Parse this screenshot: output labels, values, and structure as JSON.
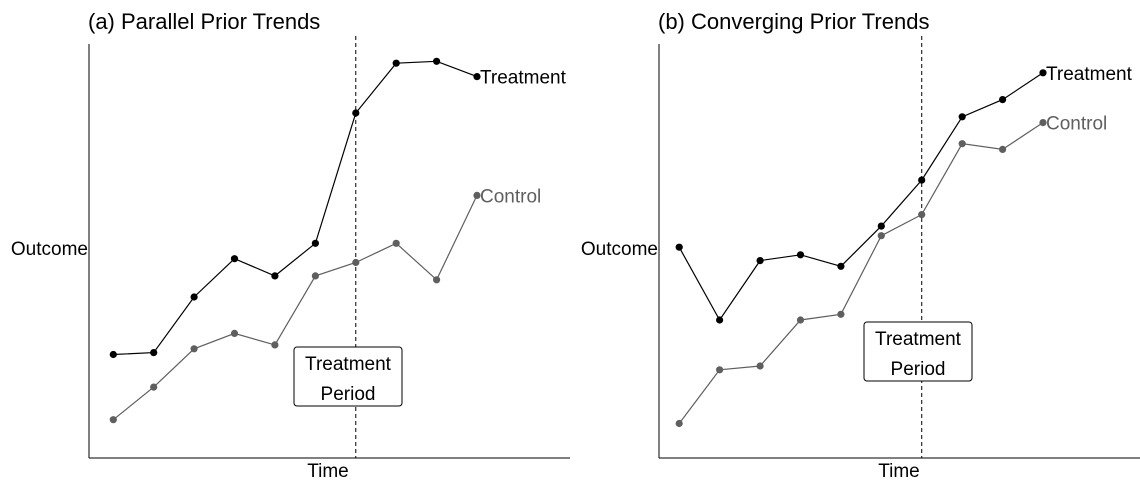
{
  "colors": {
    "treatment": "#000000",
    "control": "#5f5f5f"
  },
  "chart_data": [
    {
      "type": "line",
      "title": "(a) Parallel Prior Trends",
      "xlabel": "Time",
      "ylabel": "Outcome",
      "x": [
        1,
        2,
        3,
        4,
        5,
        6,
        7,
        8,
        9,
        10
      ],
      "xlim": [
        0.4,
        12.3
      ],
      "ylim": [
        -0.5,
        10.3
      ],
      "treatment_time": 7,
      "annotation": [
        "Treatment",
        "Period"
      ],
      "series": [
        {
          "name": "Treatment",
          "values": [
            2.2,
            2.25,
            3.7,
            4.7,
            4.25,
            5.1,
            8.5,
            9.8,
            9.85,
            9.45
          ]
        },
        {
          "name": "Control",
          "values": [
            0.5,
            1.35,
            2.35,
            2.75,
            2.45,
            4.25,
            4.6,
            5.1,
            4.15,
            6.35
          ]
        }
      ]
    },
    {
      "type": "line",
      "title": "(b) Converging Prior Trends",
      "xlabel": "Time",
      "ylabel": "Outcome",
      "x": [
        1,
        2,
        3,
        4,
        5,
        6,
        7,
        8,
        9,
        10
      ],
      "xlim": [
        0.5,
        12.4
      ],
      "ylim": [
        -0.4,
        10.4
      ],
      "treatment_time": 7,
      "annotation": [
        "Treatment",
        "Period"
      ],
      "series": [
        {
          "name": "Treatment",
          "values": [
            5.1,
            3.2,
            4.75,
            4.9,
            4.6,
            5.65,
            6.85,
            8.5,
            8.95,
            9.65
          ]
        },
        {
          "name": "Control",
          "values": [
            0.5,
            1.9,
            2.0,
            3.2,
            3.35,
            5.4,
            5.95,
            7.8,
            7.65,
            8.35
          ]
        }
      ]
    }
  ]
}
